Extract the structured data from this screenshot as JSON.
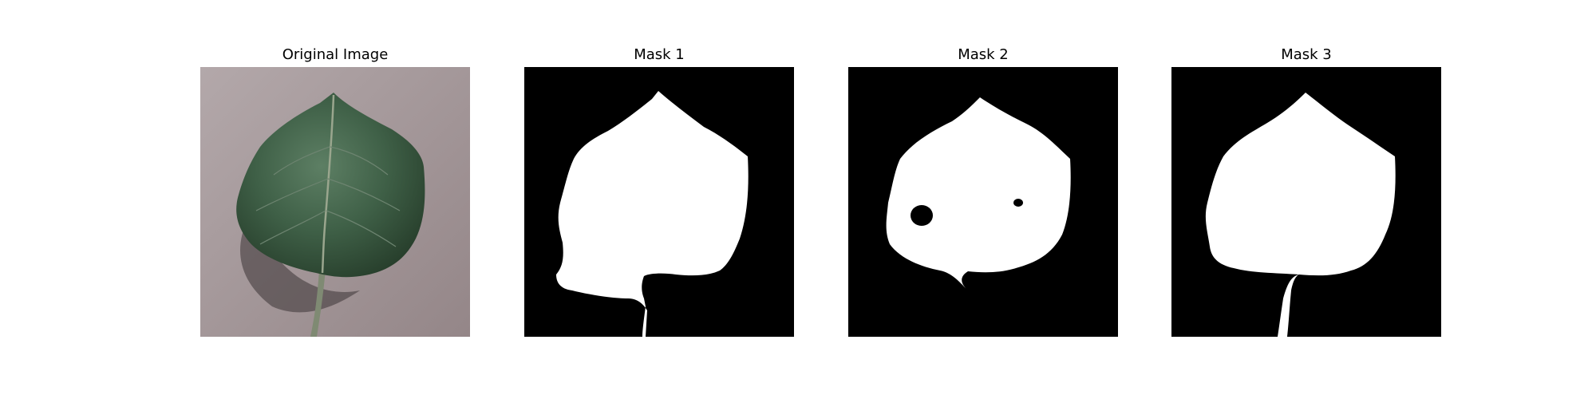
{
  "panels": [
    {
      "title": "Original Image",
      "kind": "photo-leaf-icon"
    },
    {
      "title": "Mask 1",
      "kind": "mask"
    },
    {
      "title": "Mask 2",
      "kind": "mask"
    },
    {
      "title": "Mask 3",
      "kind": "mask"
    }
  ],
  "colors": {
    "background": "#ffffff",
    "mask_foreground": "#ffffff",
    "mask_background": "#000000",
    "photo_surface": "#a5999b",
    "leaf_dark": "#2e4a33",
    "leaf_mid": "#3f6047",
    "stem": "#7f8a73"
  }
}
